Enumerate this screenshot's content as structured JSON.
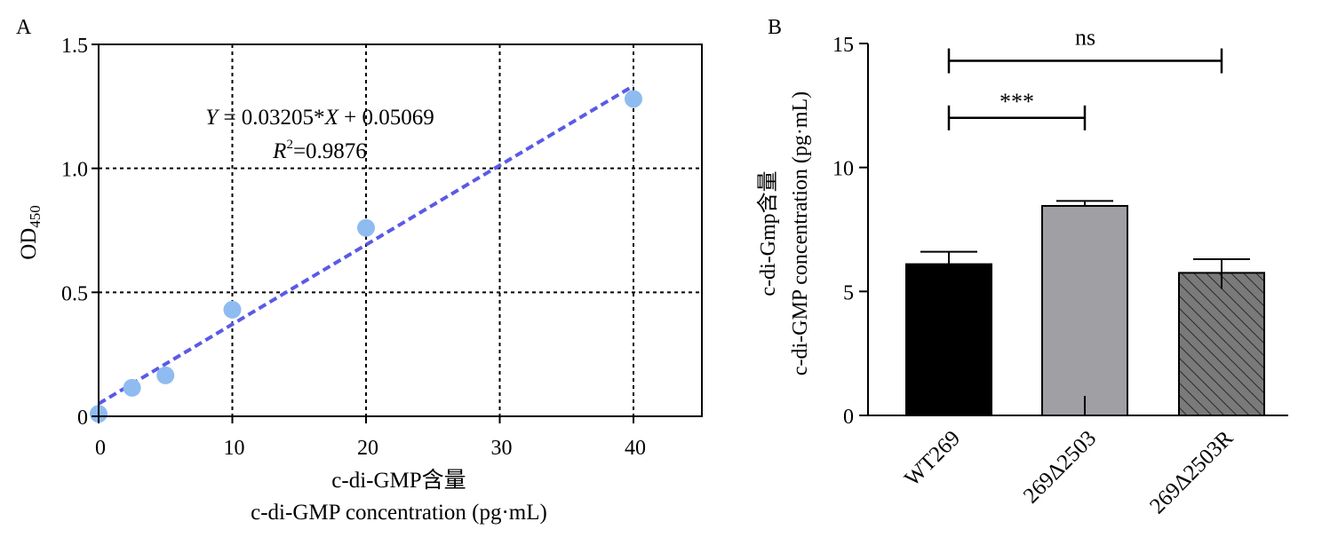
{
  "chart_data": [
    {
      "type": "scatter",
      "panel_label": "A",
      "equation_text": {
        "lhs": "Y",
        "mid": " = 0.03205*",
        "var": "X",
        "rhs": " + 0.05069"
      },
      "r2_text": {
        "var": "R",
        "sup": "2",
        "rest": "=0.9876"
      },
      "xlabel_cn": "c-di-GMP含量",
      "xlabel_en": "c-di-GMP concentration (pg·mL)",
      "ylabel": {
        "main": "OD",
        "sub": "450"
      },
      "xlim": [
        0,
        45
      ],
      "ylim": [
        0,
        1.5
      ],
      "xticks": [
        0,
        10,
        20,
        30,
        40
      ],
      "yticks": [
        {
          "v": 0,
          "label": "0"
        },
        {
          "v": 0.5,
          "label": "0.5"
        },
        {
          "v": 1.0,
          "label": "1.0"
        },
        {
          "v": 1.5,
          "label": "1.5"
        }
      ],
      "grid": true,
      "points": [
        {
          "x": 0,
          "y": 0.01
        },
        {
          "x": 2.5,
          "y": 0.115
        },
        {
          "x": 5,
          "y": 0.165
        },
        {
          "x": 10,
          "y": 0.43
        },
        {
          "x": 20,
          "y": 0.76
        },
        {
          "x": 40,
          "y": 1.28
        }
      ],
      "fit": {
        "slope": 0.03205,
        "intercept": 0.05069,
        "x_range": [
          0,
          40
        ]
      },
      "point_color": "#8fbcf0",
      "line_color": "#5a5ae6"
    },
    {
      "type": "bar",
      "panel_label": "B",
      "categories": [
        "WT269",
        "269Δ2503",
        "269Δ2503R"
      ],
      "values": [
        6.1,
        8.45,
        5.75
      ],
      "errors": [
        0.5,
        0.2,
        0.55
      ],
      "ylabel_cn": "c-di-Gmp含量",
      "ylabel_en": "c-di-GMP concentration (pg·mL)",
      "ylim": [
        0,
        15
      ],
      "yticks": [
        0,
        5,
        10,
        15
      ],
      "bar_colors": [
        "#000000",
        "#a0a0a4",
        "#7a7a7a"
      ],
      "bar_patterns": [
        "solid",
        "solid",
        "hatch"
      ],
      "significance": [
        {
          "from": 0,
          "to": 1,
          "y": 12.0,
          "label": "***"
        },
        {
          "from": 0,
          "to": 2,
          "y": 14.3,
          "label": "ns"
        }
      ]
    }
  ]
}
